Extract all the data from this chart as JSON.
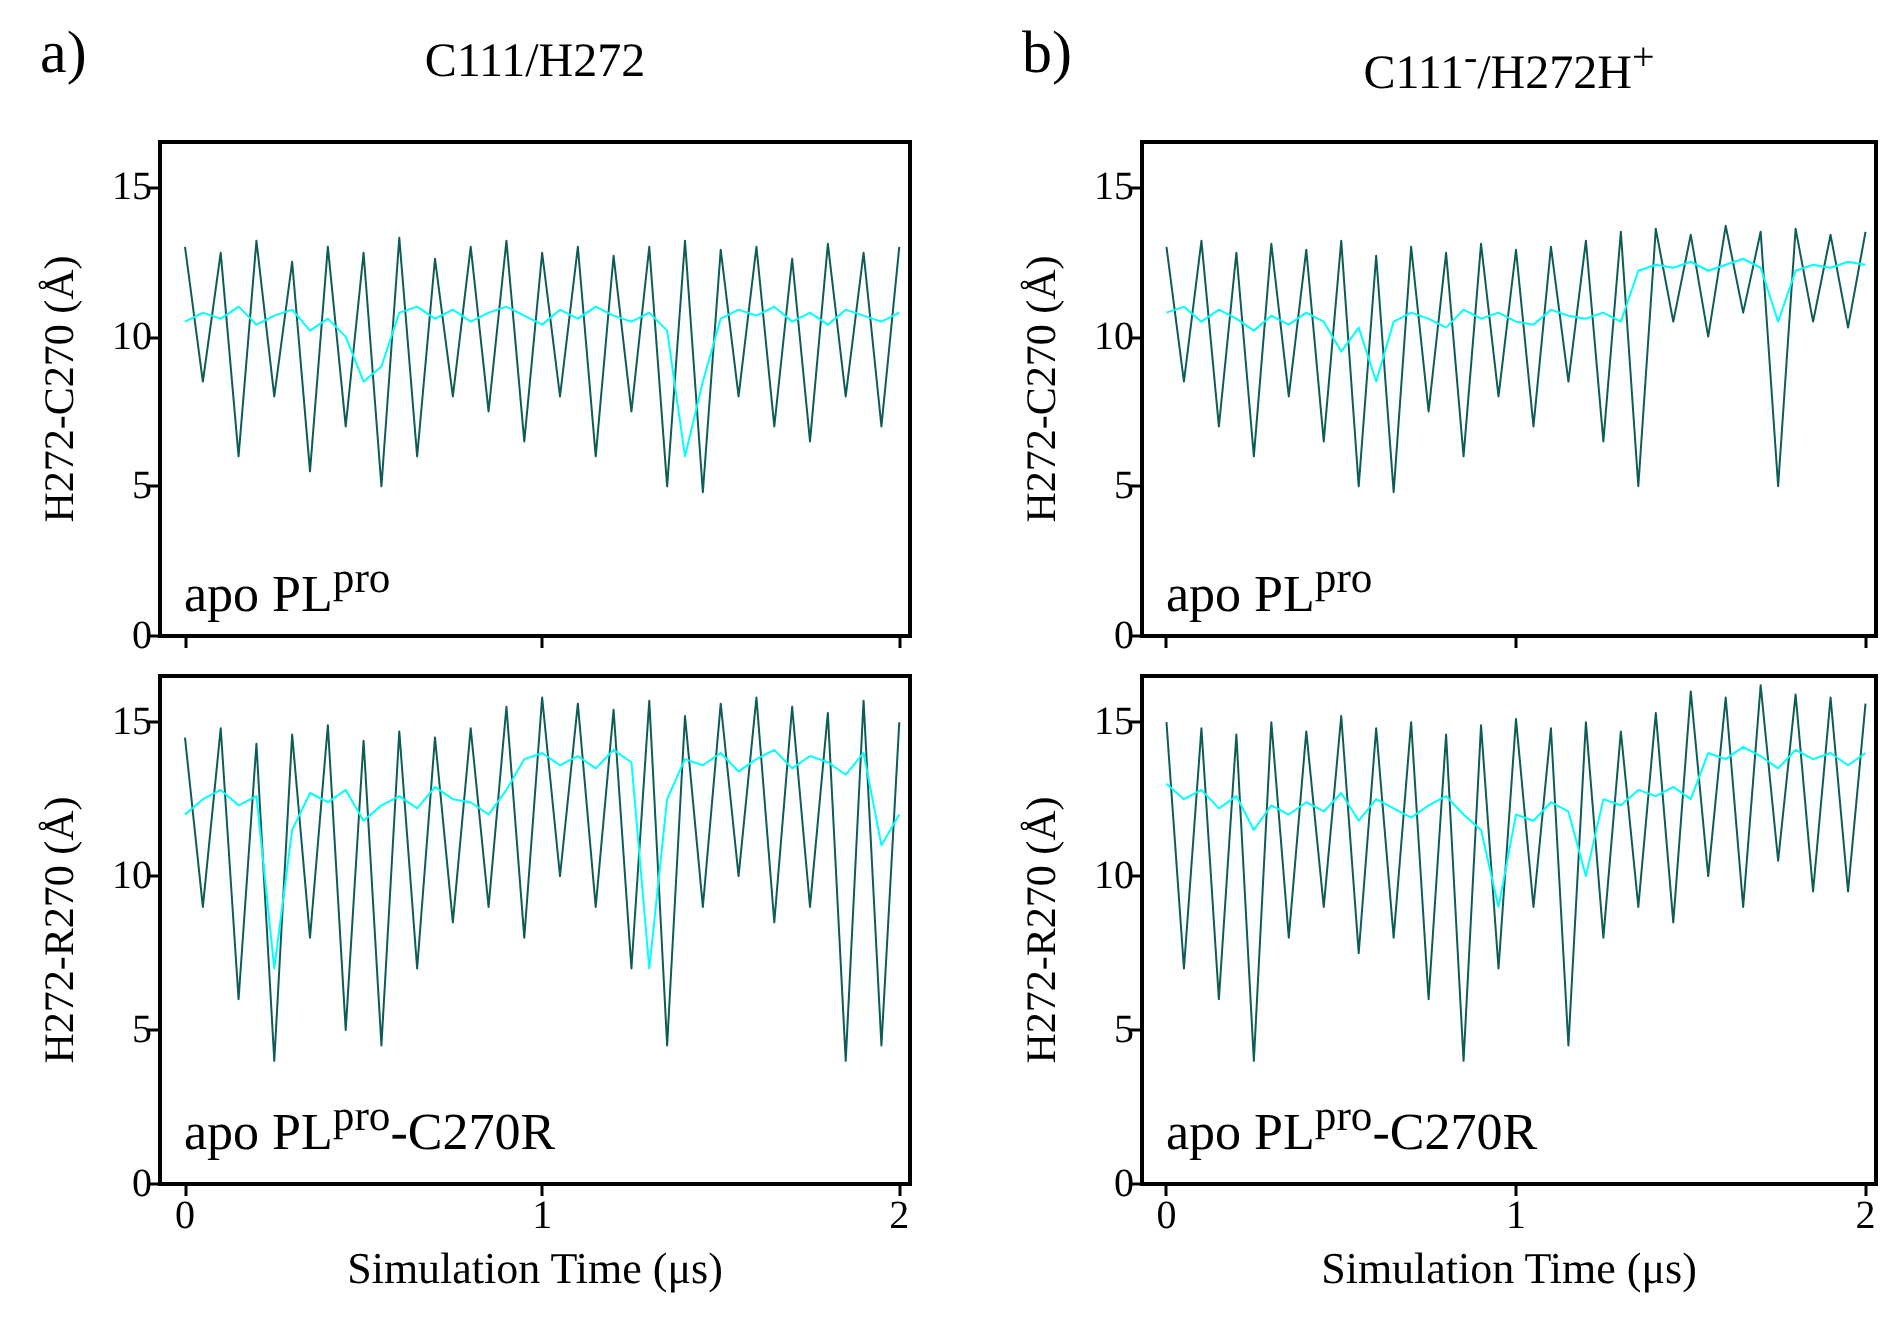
{
  "chart_data": [
    {
      "type": "line",
      "title": "C111/H272",
      "ylabel": "H272-C270 (Å)",
      "annotations": [
        "a)",
        "apo PL$^{pro}$"
      ],
      "xlim": [
        -0.07,
        2.03
      ],
      "xticks": [
        0,
        1,
        2
      ],
      "ylim": [
        0,
        16.5
      ],
      "yticks": [
        0,
        5,
        10,
        15
      ],
      "tick_labels": "y",
      "marker": "none",
      "line_style": "solid",
      "x": [
        0,
        0.05,
        0.1,
        0.15,
        0.2,
        0.25,
        0.3,
        0.35,
        0.4,
        0.45,
        0.5,
        0.55,
        0.6,
        0.65,
        0.7,
        0.75,
        0.8,
        0.85,
        0.9,
        0.95,
        1,
        1.05,
        1.1,
        1.15,
        1.2,
        1.25,
        1.3,
        1.35,
        1.4,
        1.45,
        1.5,
        1.55,
        1.6,
        1.65,
        1.7,
        1.75,
        1.8,
        1.85,
        1.9,
        1.95,
        2
      ],
      "series": [
        {
          "color": "#0d5c55",
          "values": [
            13,
            8.5,
            12.8,
            6,
            13.2,
            8,
            12.5,
            5.5,
            13,
            7,
            12.8,
            5,
            13.3,
            6,
            12.6,
            8,
            13,
            7.5,
            13.2,
            6.5,
            12.8,
            8,
            13,
            6,
            12.7,
            7.5,
            13,
            5,
            13.2,
            4.8,
            12.9,
            8,
            13,
            7,
            12.6,
            6.5,
            13.1,
            8,
            12.8,
            7,
            13
          ]
        },
        {
          "color": "#00ffff",
          "values": [
            10.5,
            10.8,
            10.6,
            11,
            10.4,
            10.7,
            10.9,
            10.2,
            10.6,
            10,
            8.5,
            9,
            10.8,
            11,
            10.6,
            10.9,
            10.5,
            10.8,
            11,
            10.7,
            10.4,
            10.9,
            10.6,
            11,
            10.7,
            10.5,
            10.8,
            10.2,
            6,
            8.5,
            10.6,
            10.9,
            10.7,
            11,
            10.5,
            10.8,
            10.4,
            10.9,
            10.7,
            10.5,
            10.8
          ]
        }
      ]
    },
    {
      "type": "line",
      "xlabel": "Simulation Time (μs)",
      "ylabel": "H272-R270 (Å)",
      "annotations": [
        "apo PL$^{pro}$-C270R"
      ],
      "xlim": [
        -0.07,
        2.03
      ],
      "xticks": [
        0,
        1,
        2
      ],
      "ylim": [
        0,
        16.5
      ],
      "yticks": [
        0,
        5,
        10,
        15
      ],
      "marker": "none",
      "line_style": "solid",
      "x": [
        0,
        0.05,
        0.1,
        0.15,
        0.2,
        0.25,
        0.3,
        0.35,
        0.4,
        0.45,
        0.5,
        0.55,
        0.6,
        0.65,
        0.7,
        0.75,
        0.8,
        0.85,
        0.9,
        0.95,
        1,
        1.05,
        1.1,
        1.15,
        1.2,
        1.25,
        1.3,
        1.35,
        1.4,
        1.45,
        1.5,
        1.55,
        1.6,
        1.65,
        1.7,
        1.75,
        1.8,
        1.85,
        1.9,
        1.95,
        2
      ],
      "series": [
        {
          "color": "#0d5c55",
          "values": [
            14.5,
            9,
            14.8,
            6,
            14.3,
            4,
            14.6,
            8,
            14.9,
            5,
            14.4,
            4.5,
            14.7,
            7,
            14.5,
            8.5,
            14.8,
            9,
            15.5,
            8,
            15.8,
            10,
            15.6,
            9,
            15.4,
            7,
            15.7,
            4.5,
            15.2,
            9,
            15.6,
            10,
            15.8,
            8.5,
            15.5,
            9,
            15.3,
            4,
            15.7,
            4.5,
            15
          ]
        },
        {
          "color": "#00ffff",
          "values": [
            12,
            12.5,
            12.8,
            12.3,
            12.6,
            7,
            11.5,
            12.7,
            12.4,
            12.8,
            11.8,
            12.3,
            12.6,
            12.2,
            12.9,
            12.5,
            12.4,
            12,
            12.8,
            13.8,
            14,
            13.6,
            13.9,
            13.5,
            14.1,
            13.7,
            7,
            12.5,
            13.8,
            13.6,
            14,
            13.4,
            13.8,
            14.1,
            13.5,
            13.9,
            13.7,
            13.3,
            14,
            11,
            12
          ]
        }
      ]
    },
    {
      "type": "line",
      "title": "C111$^{-}$/H272H$^{+}$",
      "ylabel": "H272-C270 (Å)",
      "annotations": [
        "b)",
        "apo PL$^{pro}$"
      ],
      "xlim": [
        -0.07,
        2.03
      ],
      "xticks": [
        0,
        1,
        2
      ],
      "ylim": [
        0,
        16.5
      ],
      "yticks": [
        0,
        5,
        10,
        15
      ],
      "tick_labels": "y",
      "marker": "none",
      "line_style": "solid",
      "x": [
        0,
        0.05,
        0.1,
        0.15,
        0.2,
        0.25,
        0.3,
        0.35,
        0.4,
        0.45,
        0.5,
        0.55,
        0.6,
        0.65,
        0.7,
        0.75,
        0.8,
        0.85,
        0.9,
        0.95,
        1,
        1.05,
        1.1,
        1.15,
        1.2,
        1.25,
        1.3,
        1.35,
        1.4,
        1.45,
        1.5,
        1.55,
        1.6,
        1.65,
        1.7,
        1.75,
        1.8,
        1.85,
        1.9,
        1.95,
        2
      ],
      "series": [
        {
          "color": "#0d5c55",
          "values": [
            13,
            8.5,
            13.2,
            7,
            12.8,
            6,
            13.1,
            8,
            12.9,
            6.5,
            13.2,
            5,
            12.7,
            4.8,
            13,
            7.5,
            12.8,
            6,
            13.1,
            8,
            12.9,
            7,
            13,
            8.5,
            13.2,
            6.5,
            13.5,
            5,
            13.6,
            10.5,
            13.4,
            10,
            13.7,
            10.8,
            13.5,
            5,
            13.6,
            10.5,
            13.4,
            10.3,
            13.5
          ]
        },
        {
          "color": "#00ffff",
          "values": [
            10.8,
            11,
            10.5,
            10.9,
            10.6,
            10.2,
            10.7,
            10.4,
            10.8,
            10.5,
            9.5,
            10.3,
            8.5,
            10.5,
            10.8,
            10.6,
            10.3,
            10.9,
            10.6,
            10.8,
            10.5,
            10.4,
            10.9,
            10.7,
            10.6,
            10.8,
            10.5,
            12.2,
            12.4,
            12.3,
            12.5,
            12.2,
            12.4,
            12.6,
            12.3,
            10.5,
            12.2,
            12.4,
            12.3,
            12.5,
            12.4
          ]
        }
      ]
    },
    {
      "type": "line",
      "xlabel": "Simulation Time (μs)",
      "ylabel": "H272-R270 (Å)",
      "annotations": [
        "apo PL$^{pro}$-C270R"
      ],
      "xlim": [
        -0.07,
        2.03
      ],
      "xticks": [
        0,
        1,
        2
      ],
      "ylim": [
        0,
        16.5
      ],
      "yticks": [
        0,
        5,
        10,
        15
      ],
      "marker": "none",
      "line_style": "solid",
      "x": [
        0,
        0.05,
        0.1,
        0.15,
        0.2,
        0.25,
        0.3,
        0.35,
        0.4,
        0.45,
        0.5,
        0.55,
        0.6,
        0.65,
        0.7,
        0.75,
        0.8,
        0.85,
        0.9,
        0.95,
        1,
        1.05,
        1.1,
        1.15,
        1.2,
        1.25,
        1.3,
        1.35,
        1.4,
        1.45,
        1.5,
        1.55,
        1.6,
        1.65,
        1.7,
        1.75,
        1.8,
        1.85,
        1.9,
        1.95,
        2
      ],
      "series": [
        {
          "color": "#0d5c55",
          "values": [
            15,
            7,
            14.8,
            6,
            14.6,
            4,
            15,
            8,
            14.7,
            9,
            15.2,
            7.5,
            14.8,
            8,
            15,
            6,
            14.6,
            4,
            14.9,
            7,
            15.1,
            9,
            14.8,
            4.5,
            15,
            8,
            14.7,
            9,
            15.3,
            8.5,
            16,
            10,
            15.8,
            9,
            16.2,
            10.5,
            15.9,
            9.5,
            15.8,
            9.5,
            15.6
          ]
        },
        {
          "color": "#00ffff",
          "values": [
            13,
            12.5,
            12.8,
            12.2,
            12.6,
            11.5,
            12.3,
            12,
            12.4,
            12.1,
            12.7,
            11.8,
            12.5,
            12.2,
            11.9,
            12.3,
            12.6,
            12,
            11.5,
            9,
            12,
            11.8,
            12.4,
            12.1,
            10,
            12.5,
            12.3,
            12.8,
            12.6,
            12.9,
            12.5,
            14,
            13.8,
            14.2,
            13.9,
            13.5,
            14.1,
            13.8,
            14,
            13.6,
            14
          ]
        }
      ]
    }
  ]
}
